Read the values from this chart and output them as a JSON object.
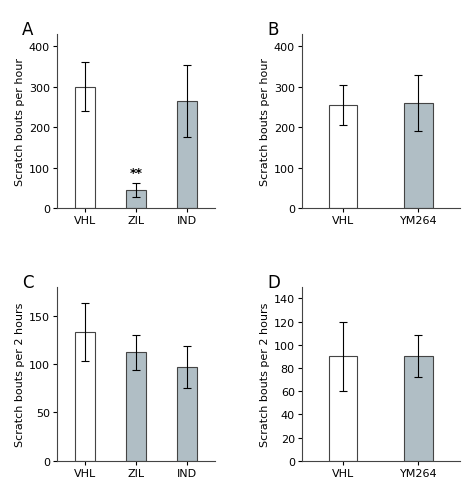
{
  "panels": {
    "A": {
      "categories": [
        "VHL",
        "ZIL",
        "IND"
      ],
      "values": [
        300,
        45,
        265
      ],
      "errors": [
        60,
        18,
        90
      ],
      "bar_colors": [
        "white",
        "#b0bec5",
        "#b0bec5"
      ],
      "ylabel": "Scratch bouts per hour",
      "ylim": [
        0,
        430
      ],
      "yticks": [
        0,
        100,
        200,
        300,
        400
      ],
      "sig_label": "**",
      "sig_bar_idx": 1,
      "label": "A"
    },
    "B": {
      "categories": [
        "VHL",
        "YM264"
      ],
      "values": [
        255,
        260
      ],
      "errors": [
        50,
        70
      ],
      "bar_colors": [
        "white",
        "#b0bec5"
      ],
      "ylabel": "Scratch bouts per hour",
      "ylim": [
        0,
        430
      ],
      "yticks": [
        0,
        100,
        200,
        300,
        400
      ],
      "sig_label": null,
      "sig_bar_idx": null,
      "label": "B"
    },
    "C": {
      "categories": [
        "VHL",
        "ZIL",
        "IND"
      ],
      "values": [
        133,
        112,
        97
      ],
      "errors": [
        30,
        18,
        22
      ],
      "bar_colors": [
        "white",
        "#b0bec5",
        "#b0bec5"
      ],
      "ylabel": "Scratch bouts per 2 hours",
      "ylim": [
        0,
        180
      ],
      "yticks": [
        0,
        50,
        100,
        150
      ],
      "sig_label": null,
      "sig_bar_idx": null,
      "label": "C"
    },
    "D": {
      "categories": [
        "VHL",
        "YM264"
      ],
      "values": [
        90,
        90
      ],
      "errors": [
        30,
        18
      ],
      "bar_colors": [
        "white",
        "#b0bec5"
      ],
      "ylabel": "Scratch bouts per 2 hours",
      "ylim": [
        0,
        150
      ],
      "yticks": [
        0,
        20,
        40,
        60,
        80,
        100,
        120,
        140
      ],
      "sig_label": null,
      "sig_bar_idx": null,
      "label": "D"
    }
  },
  "bar_width": 0.38,
  "edge_color": "#444444",
  "background_color": "#ffffff",
  "font_size": 8,
  "tick_font_size": 8,
  "label_font_size": 12
}
